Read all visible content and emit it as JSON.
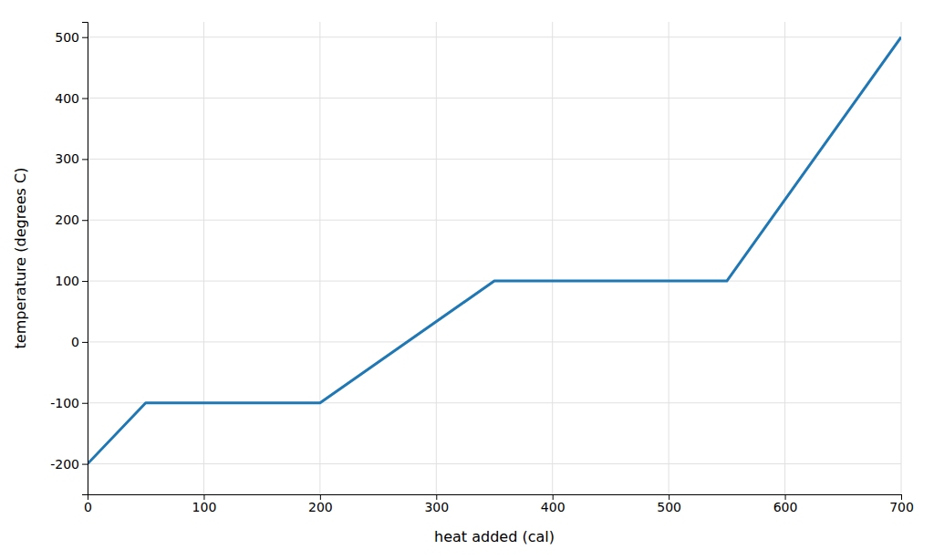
{
  "chart_data": {
    "type": "line",
    "x": [
      0,
      50,
      200,
      350,
      550,
      700
    ],
    "values": [
      -200,
      -100,
      -100,
      100,
      100,
      500
    ],
    "xlabel": "heat added (cal)",
    "ylabel": "temperature (degrees C)",
    "xlim": [
      0,
      700
    ],
    "ylim": [
      -250,
      525
    ],
    "xticks": [
      0,
      100,
      200,
      300,
      400,
      500,
      600,
      700
    ],
    "yticks": [
      -200,
      -100,
      0,
      100,
      200,
      300,
      400,
      500
    ],
    "grid": true
  }
}
